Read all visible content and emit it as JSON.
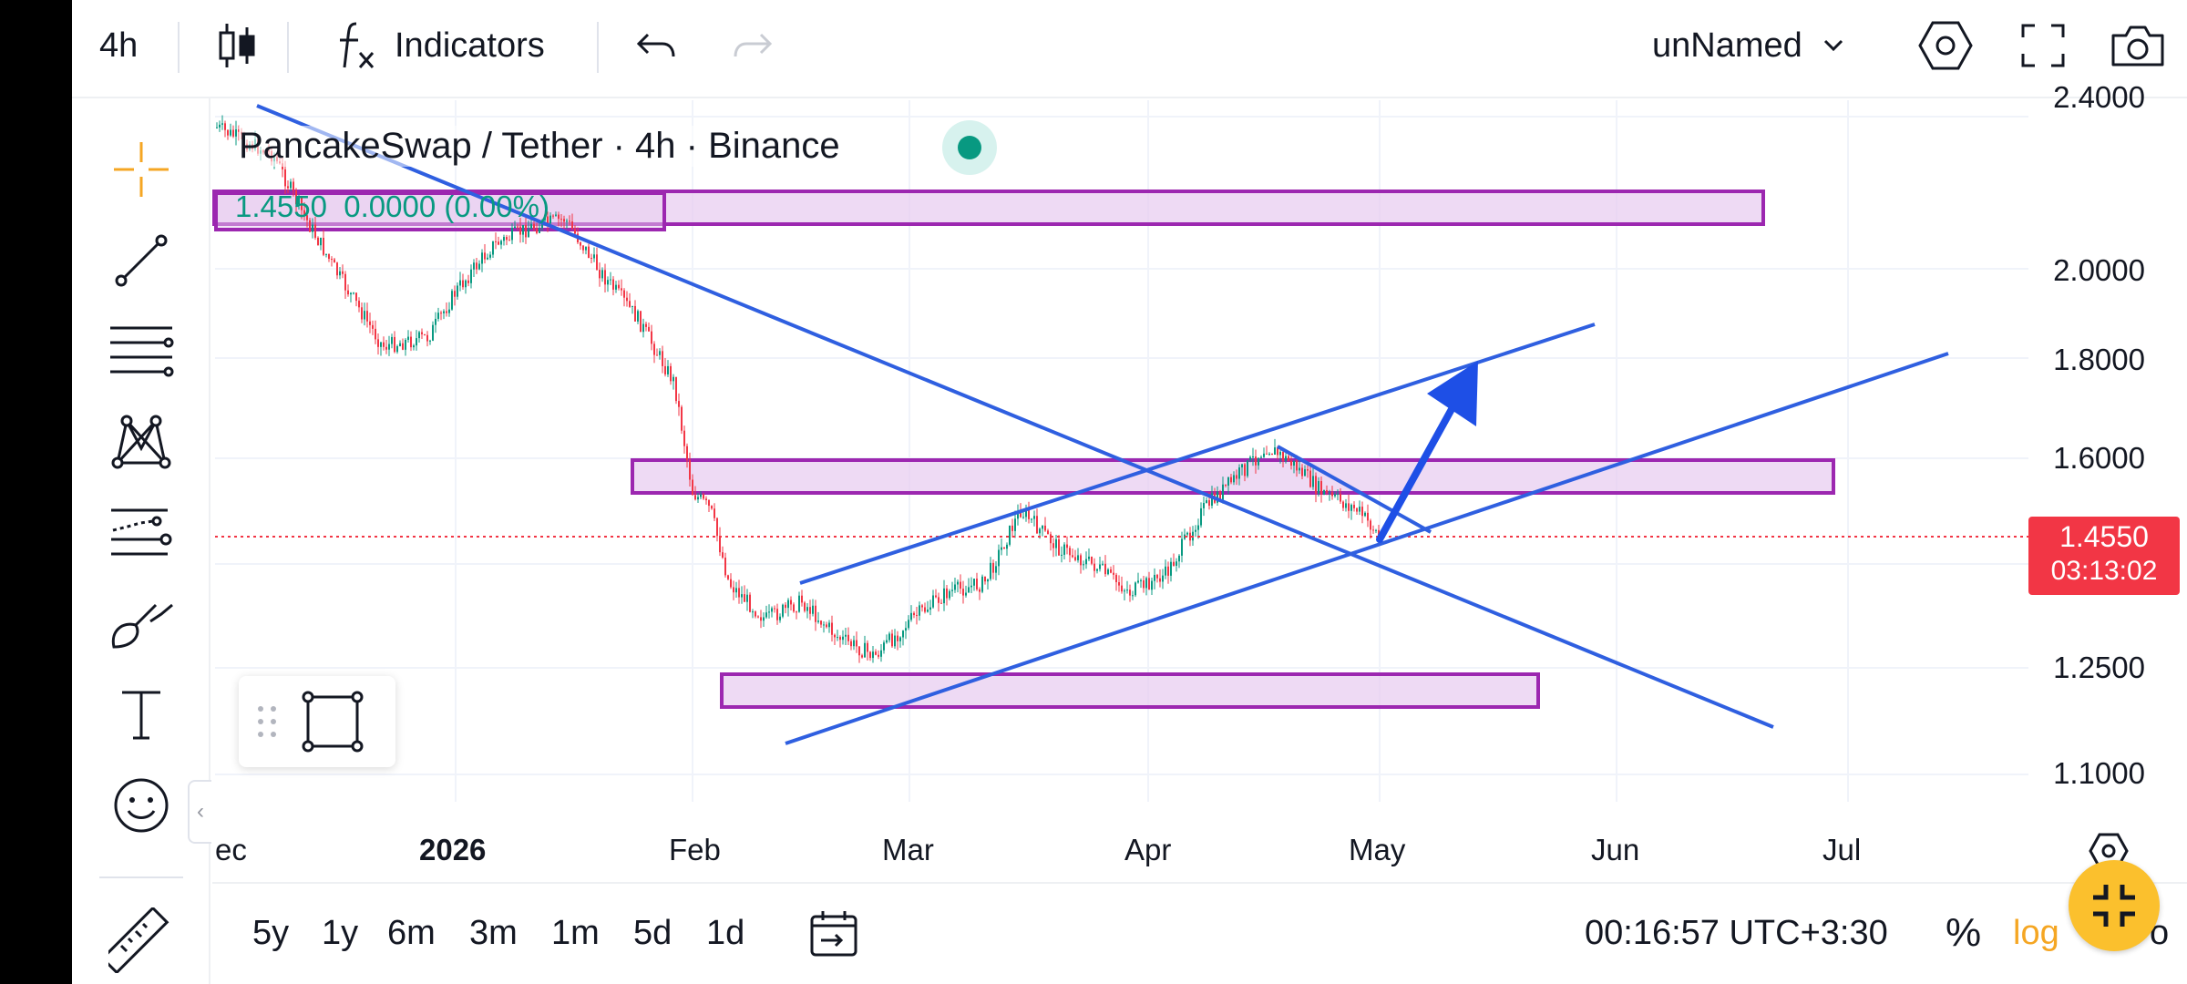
{
  "toolbar": {
    "interval": "4h",
    "indicators_label": "Indicators",
    "layout_name": "unNamed"
  },
  "legend": {
    "title": "PancakeSwap / Tether · 4h · Binance",
    "last": "1.4550",
    "change": "0.0000",
    "change_pct": "(0.00%)"
  },
  "price_axis": {
    "ticks": [
      "2.4000",
      "2.0000",
      "1.8000",
      "1.6000",
      "1.2500",
      "1.1000"
    ],
    "current_price": "1.4550",
    "countdown": "03:13:02"
  },
  "time_axis": {
    "labels": [
      "ec",
      "2026",
      "Feb",
      "Mar",
      "Apr",
      "May",
      "Jun",
      "Jul"
    ]
  },
  "ranges": [
    "5y",
    "1y",
    "6m",
    "3m",
    "1m",
    "5d",
    "1d"
  ],
  "bottom": {
    "clock": "00:16:57 UTC+3:30",
    "percent_label": "%",
    "log_label": "log",
    "auto_label": "o"
  },
  "colors": {
    "trendline": "#2f5fe0",
    "zone_fill": "#e8cdf0",
    "zone_border": "#9c27b0",
    "up": "#089981",
    "down": "#f23645",
    "arrow": "#1e4fe6",
    "fab": "#fbc02d"
  }
}
